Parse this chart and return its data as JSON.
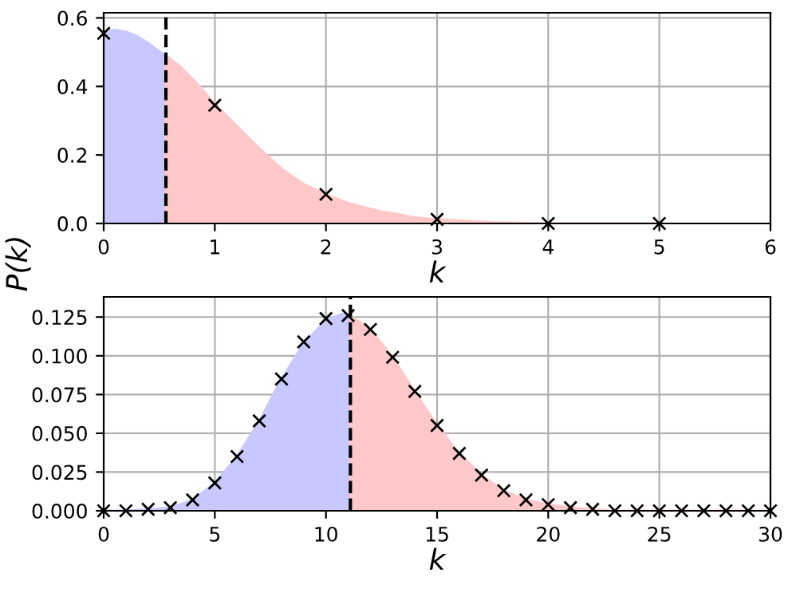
{
  "chart_data": [
    {
      "type": "area",
      "xlabel": "k",
      "ylabel": "P(k)",
      "xlim": [
        0,
        6
      ],
      "ylim": [
        0,
        0.615
      ],
      "xticks": [
        0,
        1,
        2,
        3,
        4,
        5,
        6
      ],
      "yticks": [
        {
          "value": 0,
          "label": "0.0"
        },
        0.2,
        0.4,
        0.6
      ],
      "grid": true,
      "ref_lines": [
        {
          "axis": "x",
          "value": 0.56,
          "color": "#000000",
          "line_style": "dashed"
        }
      ],
      "series": [
        {
          "color": "#c8c8ff",
          "x": [
            0,
            0.1,
            0.2,
            0.3,
            0.4,
            0.5,
            0.56
          ],
          "values": [
            0.56,
            0.565,
            0.56,
            0.547,
            0.527,
            0.503,
            0.49
          ]
        },
        {
          "color": "#ffc8c8",
          "x": [
            0.56,
            0.7,
            0.85,
            1.0,
            1.2,
            1.4,
            1.6,
            1.8,
            2.0,
            2.2,
            2.5,
            2.8,
            3.0,
            3.5,
            4.0,
            5.0
          ],
          "values": [
            0.49,
            0.455,
            0.405,
            0.35,
            0.285,
            0.22,
            0.16,
            0.115,
            0.085,
            0.06,
            0.035,
            0.018,
            0.012,
            0.004,
            0.0,
            0.0
          ]
        },
        {
          "type": "scatter",
          "marker": "cross",
          "color": "#000000",
          "x": [
            0,
            1,
            2,
            3,
            4,
            5
          ],
          "values": [
            0.555,
            0.345,
            0.085,
            0.012,
            0.0,
            0.0
          ]
        }
      ]
    },
    {
      "type": "area",
      "xlabel": "k",
      "xlim": [
        0,
        30
      ],
      "ylim": [
        0,
        0.138
      ],
      "xticks": [
        0,
        5,
        10,
        15,
        20,
        25,
        30
      ],
      "yticks": [
        {
          "value": 0,
          "label": "0.000"
        },
        {
          "value": 0.025,
          "label": "0.025"
        },
        {
          "value": 0.05,
          "label": "0.050"
        },
        {
          "value": 0.075,
          "label": "0.075"
        },
        {
          "value": 0.1,
          "label": "0.100"
        },
        {
          "value": 0.125,
          "label": "0.125"
        }
      ],
      "grid": true,
      "ref_lines": [
        {
          "axis": "x",
          "value": 11.1,
          "color": "#000000",
          "line_style": "dashed"
        }
      ],
      "series": [
        {
          "color": "#c8c8ff",
          "x": [
            0,
            1,
            2,
            3,
            4,
            5,
            6,
            7,
            8,
            9,
            10,
            10.7,
            11.1
          ],
          "values": [
            0,
            0,
            0.001,
            0.002,
            0.007,
            0.018,
            0.035,
            0.058,
            0.085,
            0.108,
            0.123,
            0.127,
            0.126
          ]
        },
        {
          "color": "#ffc8c8",
          "x": [
            11.1,
            12,
            13,
            14,
            15,
            16,
            17,
            18,
            19,
            20,
            21,
            22,
            23,
            25,
            30
          ],
          "values": [
            0.126,
            0.117,
            0.099,
            0.077,
            0.055,
            0.037,
            0.023,
            0.013,
            0.007,
            0.004,
            0.002,
            0.001,
            0,
            0,
            0
          ]
        },
        {
          "type": "scatter",
          "marker": "cross",
          "color": "#000000",
          "x": [
            0,
            1,
            2,
            3,
            4,
            5,
            6,
            7,
            8,
            9,
            10,
            11,
            12,
            13,
            14,
            15,
            16,
            17,
            18,
            19,
            20,
            21,
            22,
            23,
            24,
            25,
            26,
            27,
            28,
            29,
            30
          ],
          "values": [
            0,
            0,
            0.001,
            0.002,
            0.007,
            0.018,
            0.035,
            0.058,
            0.085,
            0.109,
            0.124,
            0.126,
            0.117,
            0.099,
            0.077,
            0.055,
            0.037,
            0.023,
            0.013,
            0.007,
            0.004,
            0.002,
            0.001,
            0,
            0,
            0,
            0,
            0,
            0,
            0,
            0
          ]
        }
      ]
    }
  ]
}
